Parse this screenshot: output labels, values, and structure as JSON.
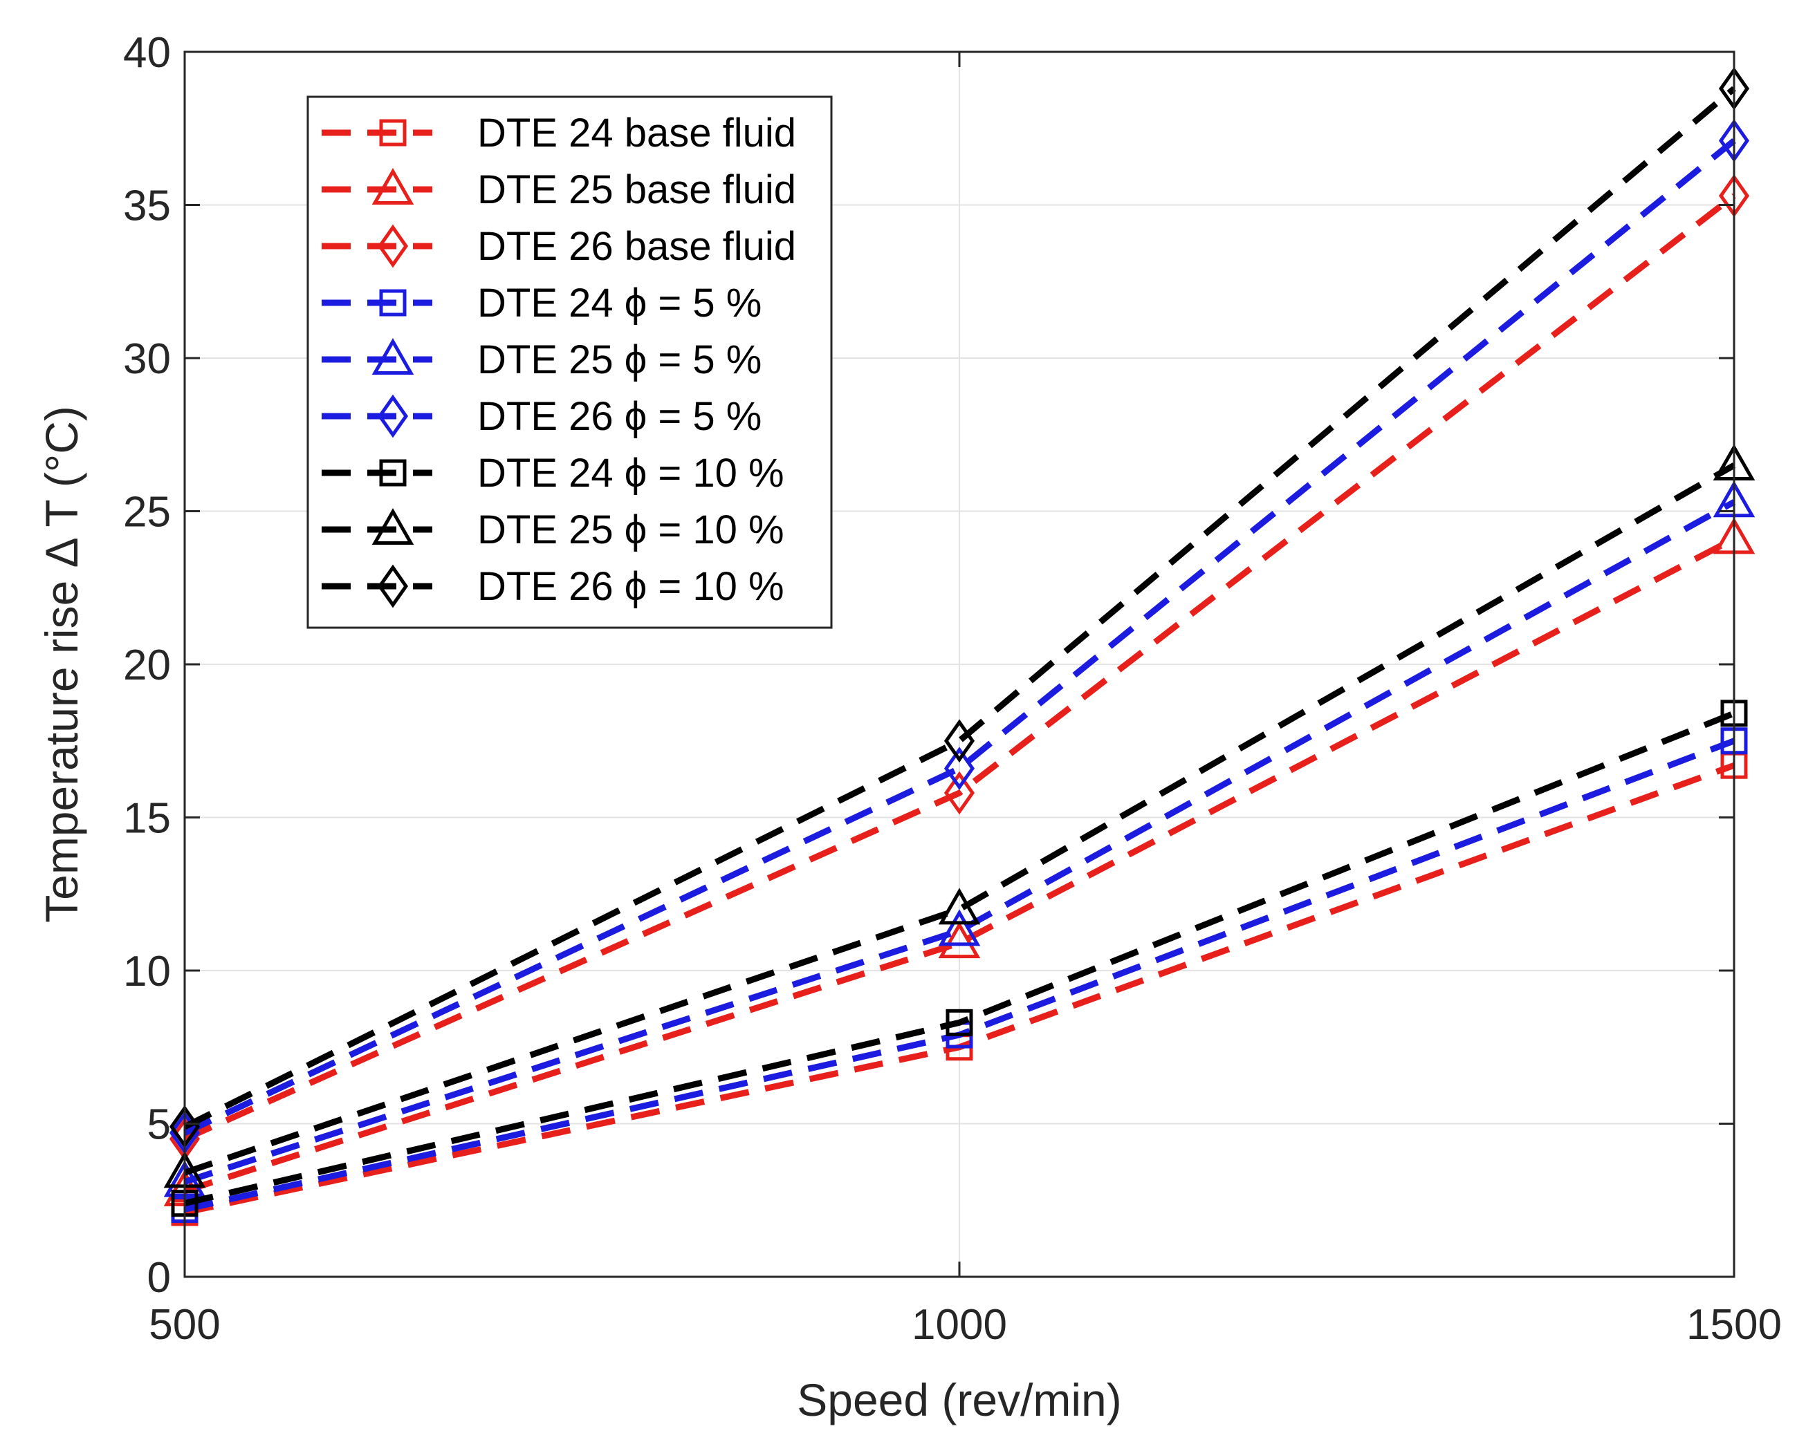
{
  "chart_data": {
    "type": "line",
    "xlabel": "Speed (rev/min)",
    "ylabel": "Temperature rise Δ T (°C)",
    "xlim": [
      500,
      1500
    ],
    "ylim": [
      0,
      40
    ],
    "xticks": [
      "500",
      "1000",
      "1500"
    ],
    "yticks": [
      "0",
      "5",
      "10",
      "15",
      "20",
      "25",
      "30",
      "35",
      "40"
    ],
    "grid": true,
    "legend_position": "top-left",
    "x": [
      500,
      1000,
      1500
    ],
    "series": [
      {
        "name": "DTE 24 base fluid",
        "color": "#e8201c",
        "marker": "square",
        "values": [
          2.1,
          7.5,
          16.7
        ]
      },
      {
        "name": "DTE 25 base fluid",
        "color": "#e8201c",
        "marker": "triangle",
        "values": [
          2.8,
          10.9,
          24.1
        ]
      },
      {
        "name": "DTE 26 base fluid",
        "color": "#e8201c",
        "marker": "diamond",
        "values": [
          4.5,
          15.8,
          35.3
        ]
      },
      {
        "name": "DTE 24 ϕ = 5 %",
        "color": "#1c1ce0",
        "marker": "square",
        "values": [
          2.2,
          7.9,
          17.5
        ]
      },
      {
        "name": "DTE 25 ϕ = 5 %",
        "color": "#1c1ce0",
        "marker": "triangle",
        "values": [
          3.1,
          11.3,
          25.3
        ]
      },
      {
        "name": "DTE 26 ϕ = 5 %",
        "color": "#1c1ce0",
        "marker": "diamond",
        "values": [
          4.7,
          16.6,
          37.1
        ]
      },
      {
        "name": "DTE 24 ϕ = 10 %",
        "color": "#000000",
        "marker": "square",
        "values": [
          2.4,
          8.3,
          18.4
        ]
      },
      {
        "name": "DTE 25 ϕ = 10 %",
        "color": "#000000",
        "marker": "triangle",
        "values": [
          3.4,
          12.0,
          26.5
        ]
      },
      {
        "name": "DTE 26 ϕ = 10 %",
        "color": "#000000",
        "marker": "diamond",
        "values": [
          4.9,
          17.5,
          38.8
        ]
      }
    ]
  }
}
